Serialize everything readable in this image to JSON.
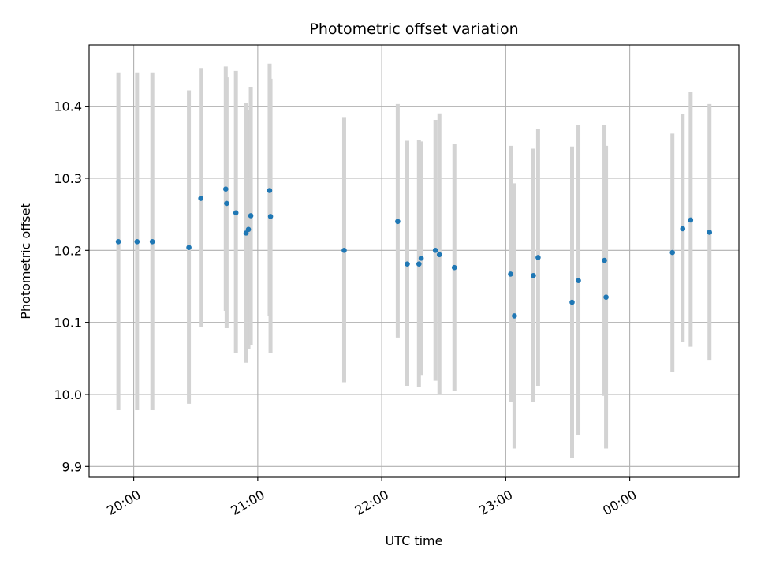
{
  "chart_data": {
    "type": "scatter",
    "title": "Photometric offset variation",
    "xlabel": "UTC time",
    "ylabel": "Photometric offset",
    "x_unit": "hours since 00:00 of first day",
    "xlim": [
      19.64,
      24.88
    ],
    "ylim": [
      9.885,
      10.485
    ],
    "grid": true,
    "xticks": [
      {
        "value": 20,
        "label": "20:00"
      },
      {
        "value": 21,
        "label": "21:00"
      },
      {
        "value": 22,
        "label": "22:00"
      },
      {
        "value": 23,
        "label": "23:00"
      },
      {
        "value": 24,
        "label": "00:00"
      }
    ],
    "yticks": [
      {
        "value": 9.9,
        "label": "9.9"
      },
      {
        "value": 10.0,
        "label": "10.0"
      },
      {
        "value": 10.1,
        "label": "10.1"
      },
      {
        "value": 10.2,
        "label": "10.2"
      },
      {
        "value": 10.3,
        "label": "10.3"
      },
      {
        "value": 10.4,
        "label": "10.4"
      }
    ],
    "colors": {
      "point": "#1f77b4",
      "errorbar": "#d3d3d3"
    },
    "points": [
      {
        "x": 19.876,
        "y": 10.212,
        "ylow": 9.978,
        "yhigh": 10.447
      },
      {
        "x": 20.027,
        "y": 10.212,
        "ylow": 9.978,
        "yhigh": 10.447
      },
      {
        "x": 20.15,
        "y": 10.212,
        "ylow": 9.978,
        "yhigh": 10.447
      },
      {
        "x": 20.445,
        "y": 10.204,
        "ylow": 9.987,
        "yhigh": 10.422
      },
      {
        "x": 20.541,
        "y": 10.272,
        "ylow": 10.093,
        "yhigh": 10.453
      },
      {
        "x": 20.742,
        "y": 10.285,
        "ylow": 10.116,
        "yhigh": 10.455
      },
      {
        "x": 20.749,
        "y": 10.265,
        "ylow": 10.092,
        "yhigh": 10.44
      },
      {
        "x": 20.824,
        "y": 10.252,
        "ylow": 10.058,
        "yhigh": 10.449
      },
      {
        "x": 20.906,
        "y": 10.224,
        "ylow": 10.044,
        "yhigh": 10.405
      },
      {
        "x": 20.925,
        "y": 10.229,
        "ylow": 10.063,
        "yhigh": 10.395
      },
      {
        "x": 20.944,
        "y": 10.248,
        "ylow": 10.069,
        "yhigh": 10.427
      },
      {
        "x": 21.096,
        "y": 10.283,
        "ylow": 10.109,
        "yhigh": 10.459
      },
      {
        "x": 21.103,
        "y": 10.247,
        "ylow": 10.057,
        "yhigh": 10.438
      },
      {
        "x": 21.697,
        "y": 10.2,
        "ylow": 10.017,
        "yhigh": 10.385
      },
      {
        "x": 22.129,
        "y": 10.24,
        "ylow": 10.079,
        "yhigh": 10.403
      },
      {
        "x": 22.206,
        "y": 10.181,
        "ylow": 10.012,
        "yhigh": 10.352
      },
      {
        "x": 22.3,
        "y": 10.181,
        "ylow": 10.01,
        "yhigh": 10.353
      },
      {
        "x": 22.318,
        "y": 10.189,
        "ylow": 10.027,
        "yhigh": 10.351
      },
      {
        "x": 22.433,
        "y": 10.2,
        "ylow": 10.019,
        "yhigh": 10.381
      },
      {
        "x": 22.465,
        "y": 10.194,
        "ylow": 10.0,
        "yhigh": 10.39
      },
      {
        "x": 22.586,
        "y": 10.176,
        "ylow": 10.005,
        "yhigh": 10.347
      },
      {
        "x": 23.039,
        "y": 10.167,
        "ylow": 9.99,
        "yhigh": 10.345
      },
      {
        "x": 23.07,
        "y": 10.109,
        "ylow": 9.925,
        "yhigh": 10.293
      },
      {
        "x": 23.223,
        "y": 10.165,
        "ylow": 9.989,
        "yhigh": 10.341
      },
      {
        "x": 23.261,
        "y": 10.19,
        "ylow": 10.012,
        "yhigh": 10.369
      },
      {
        "x": 23.535,
        "y": 10.128,
        "ylow": 9.912,
        "yhigh": 10.344
      },
      {
        "x": 23.586,
        "y": 10.158,
        "ylow": 9.943,
        "yhigh": 10.374
      },
      {
        "x": 23.796,
        "y": 10.186,
        "ylow": 9.998,
        "yhigh": 10.374
      },
      {
        "x": 23.809,
        "y": 10.135,
        "ylow": 9.925,
        "yhigh": 10.345
      },
      {
        "x": 24.344,
        "y": 10.197,
        "ylow": 10.031,
        "yhigh": 10.362
      },
      {
        "x": 24.427,
        "y": 10.23,
        "ylow": 10.073,
        "yhigh": 10.389
      },
      {
        "x": 24.491,
        "y": 10.242,
        "ylow": 10.066,
        "yhigh": 10.42
      },
      {
        "x": 24.643,
        "y": 10.225,
        "ylow": 10.048,
        "yhigh": 10.403
      }
    ]
  }
}
